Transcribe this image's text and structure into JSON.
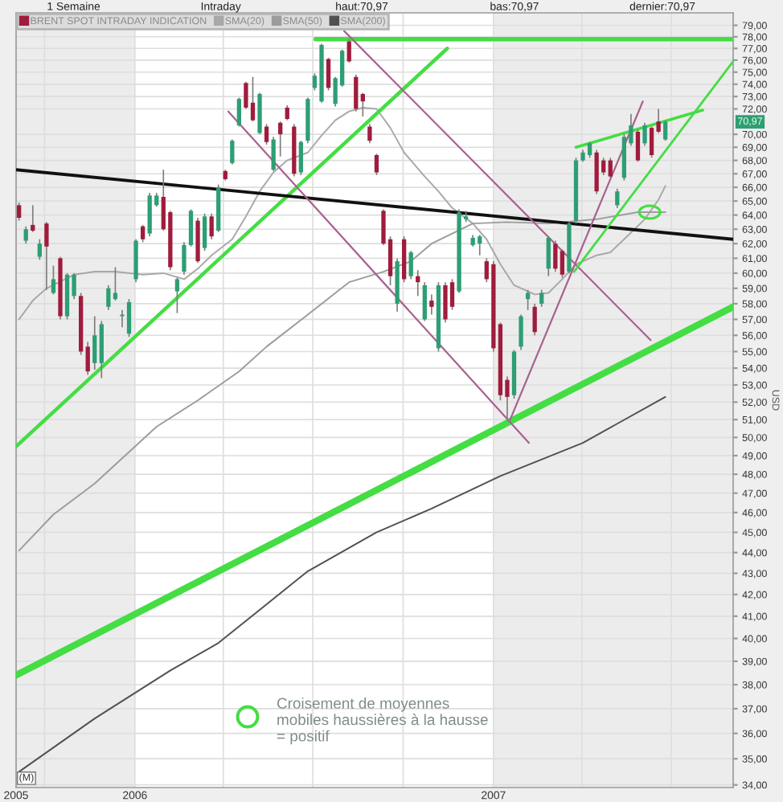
{
  "chart_data": {
    "type": "candlestick",
    "x": [
      "2005-09-05",
      "2005-09-12",
      "2005-09-19",
      "2005-09-26",
      "2005-10-03",
      "2005-10-10",
      "2005-10-17",
      "2005-10-24",
      "2005-10-31",
      "2005-11-07",
      "2005-11-14",
      "2005-11-21",
      "2005-11-28",
      "2005-12-05",
      "2005-12-12",
      "2005-12-19",
      "2005-12-26",
      "2006-01-02",
      "2006-01-09",
      "2006-01-16",
      "2006-01-23",
      "2006-01-30",
      "2006-02-06",
      "2006-02-13",
      "2006-02-20",
      "2006-02-27",
      "2006-03-06",
      "2006-03-13",
      "2006-03-20",
      "2006-03-27",
      "2006-04-03",
      "2006-04-10",
      "2006-04-17",
      "2006-04-24",
      "2006-05-01",
      "2006-05-08",
      "2006-05-15",
      "2006-05-22",
      "2006-05-29",
      "2006-06-05",
      "2006-06-12",
      "2006-06-19",
      "2006-06-26",
      "2006-07-03",
      "2006-07-10",
      "2006-07-17",
      "2006-07-24",
      "2006-07-31",
      "2006-08-07",
      "2006-08-14",
      "2006-08-21",
      "2006-08-28",
      "2006-09-04",
      "2006-09-11",
      "2006-09-18",
      "2006-09-25",
      "2006-10-02",
      "2006-10-09",
      "2006-10-16",
      "2006-10-23",
      "2006-10-30",
      "2006-11-06",
      "2006-11-13",
      "2006-11-20",
      "2006-11-27",
      "2006-12-04",
      "2006-12-11",
      "2006-12-18",
      "2006-12-25",
      "2007-01-01",
      "2007-01-08",
      "2007-01-15",
      "2007-01-22",
      "2007-01-29",
      "2007-02-05",
      "2007-02-12",
      "2007-02-19",
      "2007-02-26",
      "2007-03-05",
      "2007-03-12",
      "2007-03-19",
      "2007-03-26",
      "2007-04-02",
      "2007-04-09",
      "2007-04-16",
      "2007-04-23",
      "2007-04-30",
      "2007-05-07",
      "2007-05-14",
      "2007-05-21",
      "2007-05-28",
      "2007-06-04",
      "2007-06-11",
      "2007-06-18",
      "2007-06-25"
    ],
    "series": [
      {
        "name": "BRENT SPOT INTRADAY INDICATION",
        "color": "#a01c3c",
        "ohlc": [
          [
            64.7,
            64.9,
            63.6,
            63.8
          ],
          [
            62.2,
            63.2,
            62.0,
            63.0
          ],
          [
            63.3,
            64.7,
            62.8,
            62.9
          ],
          [
            61.1,
            62.3,
            60.9,
            62.0
          ],
          [
            63.4,
            63.5,
            58.9,
            61.8
          ],
          [
            58.7,
            60.5,
            58.6,
            59.6
          ],
          [
            61.0,
            61.1,
            57.0,
            57.2
          ],
          [
            57.2,
            60.0,
            57.0,
            59.9
          ],
          [
            58.5,
            60.0,
            58.3,
            59.9
          ],
          [
            58.5,
            58.7,
            54.8,
            55.0
          ],
          [
            55.3,
            55.6,
            53.6,
            53.8
          ],
          [
            54.3,
            57.2,
            53.9,
            56.0
          ],
          [
            54.3,
            56.9,
            53.4,
            56.7
          ],
          [
            57.8,
            59.2,
            57.6,
            59.0
          ],
          [
            58.3,
            60.4,
            58.2,
            58.7
          ],
          [
            57.2,
            57.6,
            56.5,
            57.3
          ],
          [
            56.1,
            58.3,
            55.9,
            58.1
          ],
          [
            59.6,
            62.3,
            59.4,
            62.2
          ],
          [
            63.2,
            63.3,
            62.1,
            62.3
          ],
          [
            62.7,
            65.6,
            62.5,
            65.4
          ],
          [
            64.7,
            65.6,
            64.6,
            65.4
          ],
          [
            65.3,
            67.3,
            62.9,
            63.0
          ],
          [
            64.2,
            64.3,
            60.2,
            60.4
          ],
          [
            58.8,
            59.7,
            57.4,
            59.6
          ],
          [
            60.1,
            62.1,
            59.9,
            61.9
          ],
          [
            61.9,
            64.4,
            61.8,
            64.3
          ],
          [
            63.6,
            63.8,
            60.7,
            60.8
          ],
          [
            61.7,
            64.1,
            61.5,
            63.9
          ],
          [
            63.9,
            64.1,
            62.3,
            62.5
          ],
          [
            62.9,
            66.2,
            62.8,
            66.0
          ],
          [
            67.2,
            67.3,
            66.5,
            66.6
          ],
          [
            67.8,
            69.6,
            67.7,
            69.5
          ],
          [
            70.7,
            72.9,
            70.6,
            72.8
          ],
          [
            74.1,
            74.2,
            72.0,
            72.1
          ],
          [
            72.5,
            74.6,
            71.0,
            71.1
          ],
          [
            70.1,
            73.3,
            70.0,
            73.2
          ],
          [
            70.6,
            70.8,
            69.2,
            69.4
          ],
          [
            67.3,
            69.8,
            67.2,
            69.6
          ],
          [
            70.9,
            71.0,
            68.3,
            70.0
          ],
          [
            72.1,
            72.3,
            71.1,
            71.2
          ],
          [
            70.6,
            70.8,
            66.8,
            67.0
          ],
          [
            67.1,
            69.5,
            66.9,
            69.4
          ],
          [
            69.5,
            72.9,
            69.3,
            72.8
          ],
          [
            73.7,
            74.9,
            73.5,
            74.7
          ],
          [
            72.6,
            77.4,
            72.5,
            77.3
          ],
          [
            76.1,
            76.2,
            73.5,
            73.7
          ],
          [
            72.4,
            74.6,
            72.2,
            74.5
          ],
          [
            73.9,
            76.9,
            73.8,
            76.8
          ],
          [
            77.6,
            77.8,
            75.8,
            75.9
          ],
          [
            74.6,
            74.8,
            71.8,
            72.0
          ],
          [
            73.2,
            73.3,
            71.4,
            72.6
          ],
          [
            70.6,
            70.8,
            69.3,
            69.5
          ],
          [
            68.4,
            68.5,
            66.9,
            67.1
          ],
          [
            64.3,
            64.4,
            61.9,
            62.0
          ],
          [
            62.3,
            62.5,
            59.2,
            59.8
          ],
          [
            58.0,
            61.0,
            57.5,
            60.8
          ],
          [
            62.3,
            62.5,
            59.4,
            59.6
          ],
          [
            59.8,
            61.5,
            59.6,
            61.4
          ],
          [
            59.8,
            60.2,
            58.5,
            59.4
          ],
          [
            57.0,
            59.4,
            56.9,
            59.2
          ],
          [
            58.2,
            58.6,
            57.3,
            57.8
          ],
          [
            55.2,
            59.4,
            55.0,
            59.2
          ],
          [
            59.2,
            59.4,
            56.8,
            57.0
          ],
          [
            59.4,
            59.6,
            57.6,
            57.8
          ],
          [
            58.8,
            64.4,
            58.7,
            64.2
          ],
          [
            63.7,
            64.3,
            63.5,
            63.9
          ],
          [
            61.9,
            62.6,
            61.8,
            62.4
          ],
          [
            62.0,
            62.6,
            61.2,
            62.5
          ],
          [
            60.8,
            61.0,
            59.4,
            59.6
          ],
          [
            60.6,
            60.8,
            55.0,
            55.2
          ],
          [
            56.7,
            56.8,
            52.1,
            52.4
          ],
          [
            53.3,
            53.5,
            51.0,
            52.3
          ],
          [
            52.4,
            55.1,
            52.2,
            55.0
          ],
          [
            55.3,
            57.3,
            55.1,
            57.2
          ],
          [
            58.3,
            58.9,
            57.6,
            58.7
          ],
          [
            57.8,
            58.0,
            56.0,
            56.2
          ],
          [
            58.0,
            58.9,
            57.8,
            58.7
          ],
          [
            60.3,
            62.5,
            59.8,
            62.4
          ],
          [
            62.0,
            62.2,
            60.1,
            60.3
          ],
          [
            61.5,
            61.6,
            59.7,
            59.9
          ],
          [
            60.1,
            63.5,
            60.0,
            63.4
          ],
          [
            63.6,
            68.2,
            63.4,
            68.0
          ],
          [
            68.0,
            68.8,
            67.9,
            68.6
          ],
          [
            68.4,
            69.4,
            68.2,
            69.3
          ],
          [
            68.6,
            68.8,
            65.5,
            65.7
          ],
          [
            68.0,
            68.2,
            66.9,
            67.1
          ],
          [
            68.0,
            68.2,
            66.7,
            66.8
          ],
          [
            64.7,
            65.9,
            64.5,
            65.7
          ],
          [
            66.7,
            70.0,
            66.5,
            69.8
          ],
          [
            69.3,
            71.6,
            69.1,
            70.7
          ],
          [
            70.2,
            70.4,
            67.9,
            68.0
          ],
          [
            69.3,
            70.9,
            69.1,
            70.7
          ],
          [
            70.5,
            70.6,
            68.2,
            68.4
          ],
          [
            71.0,
            72.0,
            70.1,
            70.2
          ],
          [
            69.6,
            71.1,
            69.5,
            70.97
          ]
        ],
        "colors": [
          "#a01c3c",
          "#2e9e74",
          "#a01c3c",
          "#2e9e74",
          "#a01c3c",
          "#2e9e74",
          "#a01c3c",
          "#2e9e74",
          "#2e9e74",
          "#a01c3c",
          "#a01c3c",
          "#2e9e74",
          "#2e9e74",
          "#2e9e74",
          "#2e9e74",
          "#2e9e74",
          "#2e9e74",
          "#2e9e74",
          "#a01c3c",
          "#2e9e74",
          "#2e9e74",
          "#a01c3c",
          "#a01c3c",
          "#2e9e74",
          "#2e9e74",
          "#2e9e74",
          "#a01c3c",
          "#2e9e74",
          "#a01c3c",
          "#2e9e74",
          "#a01c3c",
          "#2e9e74",
          "#2e9e74",
          "#a01c3c",
          "#a01c3c",
          "#2e9e74",
          "#a01c3c",
          "#2e9e74",
          "#a01c3c",
          "#a01c3c",
          "#a01c3c",
          "#2e9e74",
          "#2e9e74",
          "#2e9e74",
          "#2e9e74",
          "#a01c3c",
          "#2e9e74",
          "#2e9e74",
          "#a01c3c",
          "#a01c3c",
          "#a01c3c",
          "#a01c3c",
          "#a01c3c",
          "#a01c3c",
          "#a01c3c",
          "#2e9e74",
          "#a01c3c",
          "#2e9e74",
          "#a01c3c",
          "#2e9e74",
          "#a01c3c",
          "#2e9e74",
          "#a01c3c",
          "#a01c3c",
          "#2e9e74",
          "#2e9e74",
          "#2e9e74",
          "#2e9e74",
          "#a01c3c",
          "#a01c3c",
          "#a01c3c",
          "#a01c3c",
          "#2e9e74",
          "#2e9e74",
          "#2e9e74",
          "#a01c3c",
          "#2e9e74",
          "#2e9e74",
          "#a01c3c",
          "#a01c3c",
          "#2e9e74",
          "#2e9e74",
          "#2e9e74",
          "#2e9e74",
          "#a01c3c",
          "#a01c3c",
          "#a01c3c",
          "#2e9e74",
          "#2e9e74",
          "#2e9e74",
          "#a01c3c",
          "#2e9e74",
          "#a01c3c",
          "#a01c3c",
          "#2e9e74"
        ]
      },
      {
        "name": "SMA(20)",
        "type": "line",
        "color": "#a8a8a8",
        "x": [
          "2005-09-05",
          "2005-09-19",
          "2005-10-03",
          "2005-10-31",
          "2005-11-21",
          "2005-12-12",
          "2006-01-09",
          "2006-01-30",
          "2006-02-20",
          "2006-03-06",
          "2006-03-20",
          "2006-04-10",
          "2006-04-24",
          "2006-05-08",
          "2006-05-22",
          "2006-06-05",
          "2006-06-26",
          "2006-07-10",
          "2006-07-24",
          "2006-08-07",
          "2006-08-21",
          "2006-09-04",
          "2006-09-18",
          "2006-10-02",
          "2006-10-23",
          "2006-11-06",
          "2006-11-20",
          "2006-12-11",
          "2006-12-25",
          "2007-01-08",
          "2007-01-22",
          "2007-02-12",
          "2007-02-26",
          "2007-03-12",
          "2007-03-26",
          "2007-04-16",
          "2007-04-30",
          "2007-05-14",
          "2007-06-04",
          "2007-06-18",
          "2007-06-25"
        ],
        "values": [
          57.0,
          58.2,
          59.0,
          59.9,
          60.1,
          60.1,
          59.9,
          60.0,
          59.6,
          60.3,
          61.2,
          62.3,
          63.9,
          65.7,
          67.1,
          68.0,
          68.6,
          69.9,
          71.1,
          71.8,
          72.1,
          72.0,
          70.5,
          68.6,
          66.8,
          65.7,
          64.5,
          63.4,
          62.3,
          60.6,
          59.2,
          58.6,
          58.7,
          59.6,
          60.6,
          61.2,
          61.4,
          62.3,
          63.7,
          65.1,
          66.1
        ]
      },
      {
        "name": "SMA(50)",
        "type": "line",
        "color": "#9c9c9c",
        "x": [
          "2005-09-05",
          "2005-10-10",
          "2005-11-21",
          "2006-01-23",
          "2006-03-06",
          "2006-04-17",
          "2006-05-15",
          "2006-06-26",
          "2006-08-07",
          "2006-09-11",
          "2006-10-09",
          "2006-10-30",
          "2006-12-11",
          "2007-01-15",
          "2007-02-26",
          "2007-04-16",
          "2007-05-28",
          "2007-06-25"
        ],
        "values": [
          44.1,
          45.9,
          47.5,
          50.6,
          52.1,
          53.8,
          55.3,
          57.3,
          59.4,
          60.1,
          60.8,
          62.0,
          63.4,
          63.5,
          63.4,
          63.7,
          64.2,
          64.2
        ]
      },
      {
        "name": "SMA(200)",
        "type": "line",
        "color": "#505050",
        "x": [
          "2005-09-05",
          "2005-11-21",
          "2006-02-06",
          "2006-03-27",
          "2006-06-26",
          "2006-09-04",
          "2006-10-30",
          "2007-01-08",
          "2007-04-02",
          "2007-06-25"
        ],
        "values": [
          34.5,
          36.6,
          38.6,
          39.8,
          43.1,
          45.0,
          46.2,
          47.9,
          49.7,
          52.3
        ]
      },
      {
        "type": "line",
        "color": "#44dd44",
        "x": [
          "2006-07-04",
          "2007-09-02"
        ],
        "values": [
          77.8,
          77.8
        ]
      },
      {
        "type": "line",
        "color": "#44dd44",
        "x": [
          "2005-09-02",
          "2006-11-15"
        ],
        "values": [
          49.5,
          77.0
        ]
      },
      {
        "type": "line",
        "color": "#44dd44",
        "x": [
          "2005-09-02",
          "2007-09-02"
        ],
        "values": [
          38.4,
          57.8
        ]
      },
      {
        "type": "line",
        "color": "#111111",
        "x": [
          "2005-09-02",
          "2007-09-02"
        ],
        "values": [
          67.3,
          62.3
        ]
      },
      {
        "type": "line",
        "color": "#a8628f",
        "x": [
          "2006-04-06",
          "2007-02-06"
        ],
        "values": [
          71.8,
          49.7
        ]
      },
      {
        "type": "line",
        "color": "#a8628f",
        "x": [
          "2006-08-02",
          "2007-06-10"
        ],
        "values": [
          78.5,
          55.7
        ]
      },
      {
        "type": "line",
        "color": "#a8628f",
        "x": [
          "2007-01-18",
          "2007-06-02"
        ],
        "values": [
          51.0,
          72.6
        ]
      },
      {
        "type": "line",
        "color": "#44dd44",
        "x": [
          "2007-03-26",
          "2007-08-02"
        ],
        "values": [
          69.0,
          71.9
        ]
      },
      {
        "type": "line",
        "color": "#44dd44",
        "x": [
          "2007-03-24",
          "2007-09-02"
        ],
        "values": [
          60.1,
          75.9
        ]
      }
    ],
    "xlim": [
      "2005-09-02",
      "2007-09-02"
    ],
    "xticks": [
      {
        "value": "2005-09-02",
        "label": "2005"
      },
      {
        "value": "2005-10-01",
        "label": null
      },
      {
        "value": "2006-01-01",
        "label": "2006"
      },
      {
        "value": "2006-04-01",
        "label": null
      },
      {
        "value": "2006-07-01",
        "label": null
      },
      {
        "value": "2006-10-01",
        "label": null
      },
      {
        "value": "2007-01-01",
        "label": "2007"
      },
      {
        "value": "2007-04-01",
        "label": null
      },
      {
        "value": "2007-07-01",
        "label": null
      }
    ],
    "ylim": [
      33.9,
      80.1
    ],
    "yticks": [
      {
        "value": 79,
        "label": "79,00"
      },
      {
        "value": 78,
        "label": "78,00"
      },
      {
        "value": 77,
        "label": "77,00"
      },
      {
        "value": 76,
        "label": "76,00"
      },
      {
        "value": 75,
        "label": "75,00"
      },
      {
        "value": 74,
        "label": "74,00"
      },
      {
        "value": 73,
        "label": "73,00"
      },
      {
        "value": 72,
        "label": "72,00"
      },
      {
        "value": 70,
        "label": "70,00"
      },
      {
        "value": 69,
        "label": "69,00"
      },
      {
        "value": 68,
        "label": "68,00"
      },
      {
        "value": 67,
        "label": "67,00"
      },
      {
        "value": 66,
        "label": "66,00"
      },
      {
        "value": 65,
        "label": "65,00"
      },
      {
        "value": 64,
        "label": "64,00"
      },
      {
        "value": 63,
        "label": "63,00"
      },
      {
        "value": 62,
        "label": "62,00"
      },
      {
        "value": 61,
        "label": "61,00"
      },
      {
        "value": 60,
        "label": "60,00"
      },
      {
        "value": 59,
        "label": "59,00"
      },
      {
        "value": 58,
        "label": "58,00"
      },
      {
        "value": 57,
        "label": "57,00"
      },
      {
        "value": 56,
        "label": "56,00"
      },
      {
        "value": 55,
        "label": "55,00"
      },
      {
        "value": 54,
        "label": "54,00"
      },
      {
        "value": 53,
        "label": "53,00"
      },
      {
        "value": 52,
        "label": "52,00"
      },
      {
        "value": 51,
        "label": "51,00"
      },
      {
        "value": 50,
        "label": "50,00"
      },
      {
        "value": 49,
        "label": "49,00"
      },
      {
        "value": 48,
        "label": "48,00"
      },
      {
        "value": 47,
        "label": "47,00"
      },
      {
        "value": 46,
        "label": "46,00"
      },
      {
        "value": 45,
        "label": "45,00"
      },
      {
        "value": 44,
        "label": "44,00"
      },
      {
        "value": 43,
        "label": "43,00"
      },
      {
        "value": 42,
        "label": "42,00"
      },
      {
        "value": 41,
        "label": "41,00"
      },
      {
        "value": 40,
        "label": "40,00"
      },
      {
        "value": 39,
        "label": "39,00"
      },
      {
        "value": 38,
        "label": "38,00"
      },
      {
        "value": 37,
        "label": "37,00"
      },
      {
        "value": 36,
        "label": "36,00"
      },
      {
        "value": 35,
        "label": "35,00"
      },
      {
        "value": 34,
        "label": "34,00"
      }
    ],
    "log": "y",
    "ylabel": "USD",
    "grid": true,
    "legend": "top left",
    "bands": [
      {
        "axis": "x",
        "from": "2005-09-02",
        "to": "2006-01-01",
        "color": "#ececec"
      },
      {
        "axis": "x",
        "from": "2007-01-01",
        "to": "2007-09-02",
        "color": "#ececec"
      }
    ],
    "annotations": [
      "1 Semaine",
      "Intraday",
      "haut:70,97",
      "bas:70,97",
      "dernier:70,97",
      "(M)",
      "Croisement de moyennes\nmobiles haussières à la hausse\n= positif",
      {
        "text": "70,97",
        "y": 70.97
      }
    ]
  }
}
